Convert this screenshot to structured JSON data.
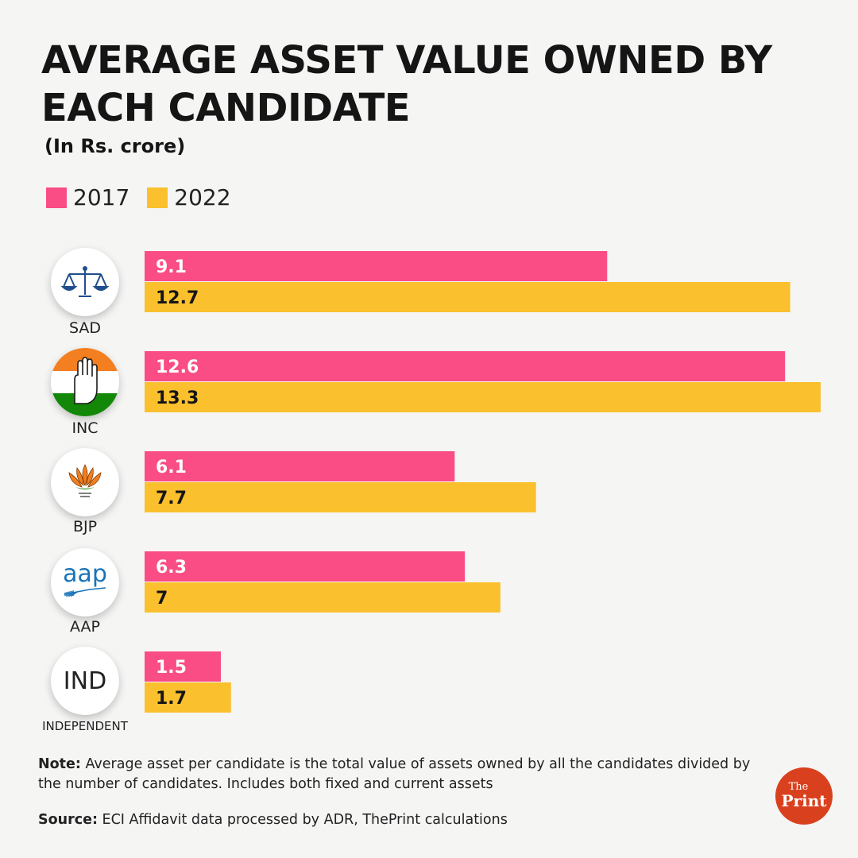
{
  "chart_data": {
    "type": "bar",
    "orientation": "horizontal",
    "title": "AVERAGE ASSET VALUE OWNED BY EACH CANDIDATE",
    "subtitle": "(In Rs. crore)",
    "categories": [
      "SAD",
      "INC",
      "BJP",
      "AAP",
      "INDEPENDENT"
    ],
    "series": [
      {
        "name": "2017",
        "color": "#fa4d86",
        "values": [
          9.1,
          12.6,
          6.1,
          6.3,
          1.5
        ],
        "labels": [
          "9.1",
          "12.6",
          "6.1",
          "6.3",
          "1.5"
        ]
      },
      {
        "name": "2022",
        "color": "#fbc02d",
        "values": [
          12.7,
          13.3,
          7.7,
          7,
          1.7
        ],
        "labels": [
          "12.7",
          "13.3",
          "7.7",
          "7",
          "1.7"
        ]
      }
    ],
    "xlim": [
      0,
      13.3
    ],
    "grid": false,
    "legend": "top-left",
    "label_colors": {
      "2017": "#ffffff",
      "2022": "#151515"
    }
  },
  "parties": [
    {
      "name": "SAD",
      "logo": "scales-icon"
    },
    {
      "name": "INC",
      "logo": "hand-icon"
    },
    {
      "name": "BJP",
      "logo": "lotus-icon"
    },
    {
      "name": "AAP",
      "logo": "broom-icon",
      "logo_text": "aap"
    },
    {
      "name": "INDEPENDENT",
      "logo": "ind-text",
      "logo_text": "IND"
    }
  ],
  "note": {
    "label": "Note:",
    "text": " Average asset per candidate is the total value of assets owned by all the candidates divided by the number of candidates. Includes both fixed and current assets"
  },
  "source": {
    "label": "Source:",
    "text": " ECI Affidavit data processed by ADR, ThePrint calculations"
  },
  "brand": {
    "top": "The",
    "bottom": "Print"
  }
}
